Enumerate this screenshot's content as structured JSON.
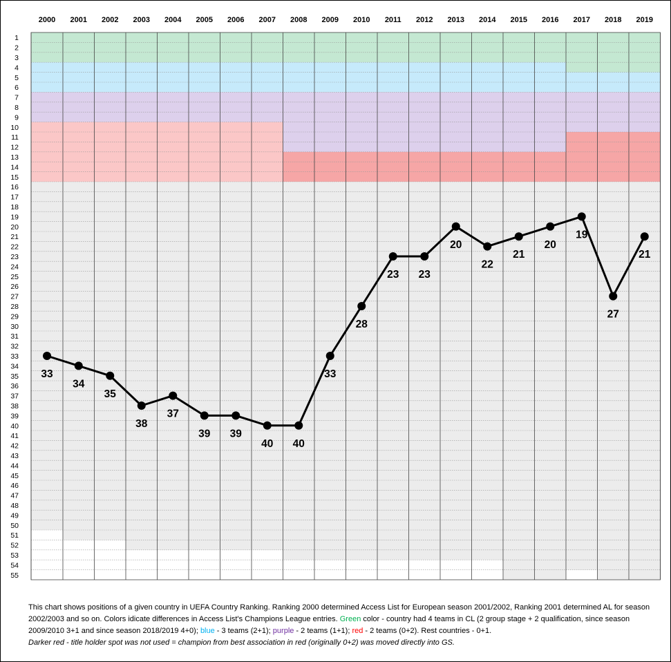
{
  "chart_data": {
    "type": "line",
    "title": "",
    "xlabel": "",
    "ylabel": "",
    "y_inverted": true,
    "ylim": [
      1,
      55
    ],
    "x": [
      "2000",
      "2001",
      "2002",
      "2003",
      "2004",
      "2005",
      "2006",
      "2007",
      "2008",
      "2009",
      "2010",
      "2011",
      "2012",
      "2013",
      "2014",
      "2015",
      "2016",
      "2017",
      "2018",
      "2019"
    ],
    "y_ticks": [
      1,
      2,
      3,
      4,
      5,
      6,
      7,
      8,
      9,
      10,
      11,
      12,
      13,
      14,
      15,
      16,
      17,
      18,
      19,
      20,
      21,
      22,
      23,
      24,
      25,
      26,
      27,
      28,
      29,
      30,
      31,
      32,
      33,
      34,
      35,
      36,
      37,
      38,
      39,
      40,
      41,
      42,
      43,
      44,
      45,
      46,
      47,
      48,
      49,
      50,
      51,
      52,
      53,
      54,
      55
    ],
    "series": [
      {
        "values": [
          33,
          34,
          35,
          38,
          37,
          39,
          39,
          40,
          40,
          33,
          28,
          23,
          23,
          20,
          22,
          21,
          20,
          19,
          27,
          21
        ]
      }
    ],
    "data_labels": [
      "33",
      "34",
      "35",
      "38",
      "37",
      "39",
      "39",
      "40",
      "40",
      "33",
      "28",
      "23",
      "23",
      "20",
      "22",
      "21",
      "20",
      "19",
      "27",
      "21"
    ],
    "background_bands": {
      "description_colors": {
        "green": "#c4e8d2",
        "blue": "#c6eafb",
        "purple": "#ddd0ec",
        "red": "#fbc7c7",
        "dark_red": "#f6a6a6",
        "gray": "#ececec",
        "white": "#ffffff"
      },
      "columns": [
        {
          "year": "2000",
          "green": [
            1,
            3
          ],
          "blue": [
            4,
            6
          ],
          "purple": [
            7,
            9
          ],
          "red": [
            10,
            15
          ],
          "gray": [
            16,
            50
          ]
        },
        {
          "year": "2001",
          "green": [
            1,
            3
          ],
          "blue": [
            4,
            6
          ],
          "purple": [
            7,
            9
          ],
          "red": [
            10,
            15
          ],
          "gray": [
            16,
            51
          ]
        },
        {
          "year": "2002",
          "green": [
            1,
            3
          ],
          "blue": [
            4,
            6
          ],
          "purple": [
            7,
            9
          ],
          "red": [
            10,
            15
          ],
          "gray": [
            16,
            51
          ]
        },
        {
          "year": "2003",
          "green": [
            1,
            3
          ],
          "blue": [
            4,
            6
          ],
          "purple": [
            7,
            9
          ],
          "red": [
            10,
            15
          ],
          "gray": [
            16,
            52
          ]
        },
        {
          "year": "2004",
          "green": [
            1,
            3
          ],
          "blue": [
            4,
            6
          ],
          "purple": [
            7,
            9
          ],
          "red": [
            10,
            15
          ],
          "gray": [
            16,
            52
          ]
        },
        {
          "year": "2005",
          "green": [
            1,
            3
          ],
          "blue": [
            4,
            6
          ],
          "purple": [
            7,
            9
          ],
          "red": [
            10,
            15
          ],
          "gray": [
            16,
            52
          ]
        },
        {
          "year": "2006",
          "green": [
            1,
            3
          ],
          "blue": [
            4,
            6
          ],
          "purple": [
            7,
            9
          ],
          "red": [
            10,
            15
          ],
          "gray": [
            16,
            52
          ]
        },
        {
          "year": "2007",
          "green": [
            1,
            3
          ],
          "blue": [
            4,
            6
          ],
          "purple": [
            7,
            9
          ],
          "red": [
            10,
            15
          ],
          "gray": [
            16,
            52
          ]
        },
        {
          "year": "2008",
          "green": [
            1,
            3
          ],
          "blue": [
            4,
            6
          ],
          "purple": [
            7,
            12
          ],
          "dark_red": [
            13,
            15
          ],
          "gray": [
            16,
            53
          ]
        },
        {
          "year": "2009",
          "green": [
            1,
            3
          ],
          "blue": [
            4,
            6
          ],
          "purple": [
            7,
            12
          ],
          "dark_red": [
            13,
            15
          ],
          "gray": [
            16,
            53
          ]
        },
        {
          "year": "2010",
          "green": [
            1,
            3
          ],
          "blue": [
            4,
            6
          ],
          "purple": [
            7,
            12
          ],
          "dark_red": [
            13,
            15
          ],
          "gray": [
            16,
            53
          ]
        },
        {
          "year": "2011",
          "green": [
            1,
            3
          ],
          "blue": [
            4,
            6
          ],
          "purple": [
            7,
            12
          ],
          "dark_red": [
            13,
            15
          ],
          "gray": [
            16,
            53
          ]
        },
        {
          "year": "2012",
          "green": [
            1,
            3
          ],
          "blue": [
            4,
            6
          ],
          "purple": [
            7,
            12
          ],
          "dark_red": [
            13,
            15
          ],
          "gray": [
            16,
            53
          ]
        },
        {
          "year": "2013",
          "green": [
            1,
            3
          ],
          "blue": [
            4,
            6
          ],
          "purple": [
            7,
            12
          ],
          "dark_red": [
            13,
            15
          ],
          "gray": [
            16,
            53
          ]
        },
        {
          "year": "2014",
          "green": [
            1,
            3
          ],
          "blue": [
            4,
            6
          ],
          "purple": [
            7,
            12
          ],
          "dark_red": [
            13,
            15
          ],
          "gray": [
            16,
            53
          ]
        },
        {
          "year": "2015",
          "green": [
            1,
            3
          ],
          "blue": [
            4,
            6
          ],
          "purple": [
            7,
            12
          ],
          "dark_red": [
            13,
            15
          ],
          "gray": [
            16,
            55
          ]
        },
        {
          "year": "2016",
          "green": [
            1,
            3
          ],
          "blue": [
            4,
            6
          ],
          "purple": [
            7,
            12
          ],
          "dark_red": [
            13,
            15
          ],
          "gray": [
            16,
            55
          ]
        },
        {
          "year": "2017",
          "green": [
            1,
            4
          ],
          "blue": [
            5,
            6
          ],
          "purple": [
            7,
            10
          ],
          "dark_red": [
            11,
            15
          ],
          "gray": [
            16,
            54
          ]
        },
        {
          "year": "2018",
          "green": [
            1,
            4
          ],
          "blue": [
            5,
            6
          ],
          "purple": [
            7,
            10
          ],
          "dark_red": [
            11,
            15
          ],
          "gray": [
            16,
            55
          ]
        },
        {
          "year": "2019",
          "green": [
            1,
            4
          ],
          "blue": [
            5,
            6
          ],
          "purple": [
            7,
            10
          ],
          "dark_red": [
            11,
            15
          ],
          "gray": [
            16,
            55
          ]
        }
      ]
    },
    "grid": true,
    "line_color": "#000000"
  },
  "caption": {
    "line1": "This chart shows positions of a given country in  UEFA Country Ranking. Ranking 2000 determined Access List for European season 2001/2002, Ranking 2001 determined AL for season 2002/2003 and so on.  Colors idicate differences in Access List's Champions League entries.",
    "green_word": "Green",
    "green_text": " color - country had 4 teams in CL (2 group stage + 2 qualification, since season 2009/2010 3+1 and since season 2018/2019  4+0); ",
    "blue_word": "blue",
    "blue_text": " - 3 teams  (2+1); ",
    "purple_word": "purple",
    "purple_text": " - 2 teams (1+1); ",
    "red_word": "red",
    "red_text": " - 2 teams (0+2). Rest countries - 0+1.",
    "note": "Darker red - title holder spot was not used = champion from best association in red (originally 0+2) was moved directly into GS."
  }
}
